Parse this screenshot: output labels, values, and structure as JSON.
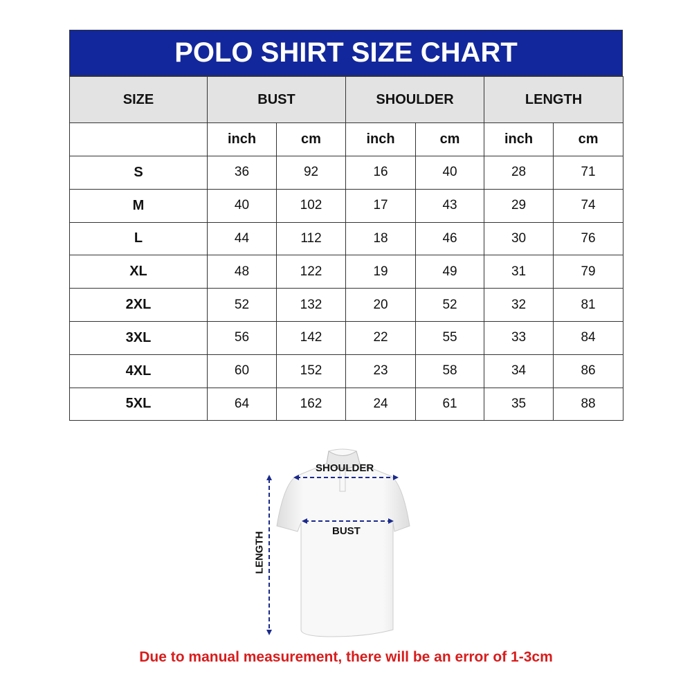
{
  "title": "POLO SHIRT SIZE CHART",
  "headers": [
    "SIZE",
    "BUST",
    "SHOULDER",
    "LENGTH"
  ],
  "units": [
    "inch",
    "cm",
    "inch",
    "cm",
    "inch",
    "cm"
  ],
  "rows": [
    [
      "S",
      "36",
      "92",
      "16",
      "40",
      "28",
      "71"
    ],
    [
      "M",
      "40",
      "102",
      "17",
      "43",
      "29",
      "74"
    ],
    [
      "L",
      "44",
      "112",
      "18",
      "46",
      "30",
      "76"
    ],
    [
      "XL",
      "48",
      "122",
      "19",
      "49",
      "31",
      "79"
    ],
    [
      "2XL",
      "52",
      "132",
      "20",
      "52",
      "32",
      "81"
    ],
    [
      "3XL",
      "56",
      "142",
      "22",
      "55",
      "33",
      "84"
    ],
    [
      "4XL",
      "60",
      "152",
      "23",
      "58",
      "34",
      "86"
    ],
    [
      "5XL",
      "64",
      "162",
      "24",
      "61",
      "35",
      "88"
    ]
  ],
  "diagram": {
    "shoulder": "SHOULDER",
    "bust": "BUST",
    "length": "LENGTH"
  },
  "note": "Due to manual measurement, there will be an error of 1-3cm",
  "colors": {
    "header": "#13279c",
    "note": "#d81c1c",
    "arrow": "#1a2a8c"
  }
}
